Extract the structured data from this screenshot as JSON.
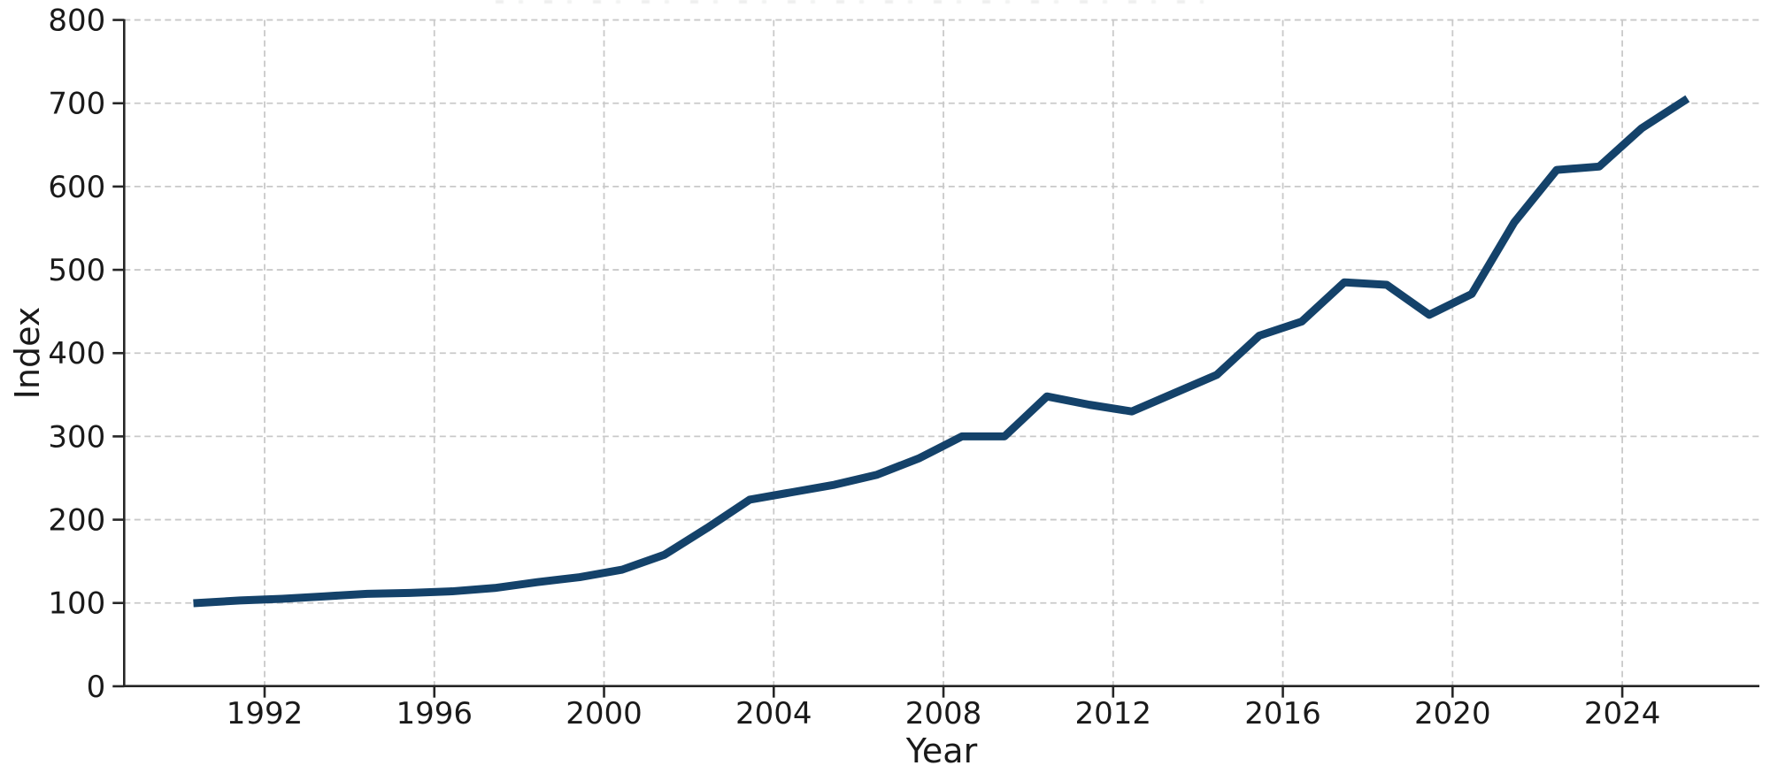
{
  "chart_data": {
    "type": "line",
    "title": "",
    "xlabel": "Year",
    "ylabel": "Index",
    "x": [
      1990,
      1991,
      1992,
      1993,
      1994,
      1995,
      1996,
      1997,
      1998,
      1999,
      2000,
      2001,
      2002,
      2003,
      2004,
      2005,
      2006,
      2007,
      2008,
      2009,
      2010,
      2011,
      2012,
      2013,
      2014,
      2015,
      2016,
      2017,
      2018,
      2019,
      2020,
      2021,
      2022,
      2023,
      2024,
      2025
    ],
    "series": [
      {
        "name": "Index",
        "values": [
          100,
          103,
          105,
          108,
          111,
          112,
          114,
          118,
          125,
          131,
          140,
          158,
          190,
          224,
          233,
          242,
          254,
          274,
          300,
          300,
          348,
          338,
          330,
          352,
          374,
          421,
          438,
          485,
          482,
          446,
          471,
          557,
          620,
          624,
          670,
          703
        ]
      }
    ],
    "x_ticks": [
      1992,
      1996,
      2000,
      2004,
      2008,
      2012,
      2016,
      2020,
      2024
    ],
    "y_ticks": [
      0,
      100,
      200,
      300,
      400,
      500,
      600,
      700,
      800
    ],
    "ylim": [
      0,
      800
    ],
    "grid": "dashed",
    "legend": "none"
  },
  "colors": {
    "line": "#14426a",
    "grid": "#c9c9c9",
    "spine": "#262626",
    "text": "#1a1a1a",
    "background": "#ffffff"
  }
}
